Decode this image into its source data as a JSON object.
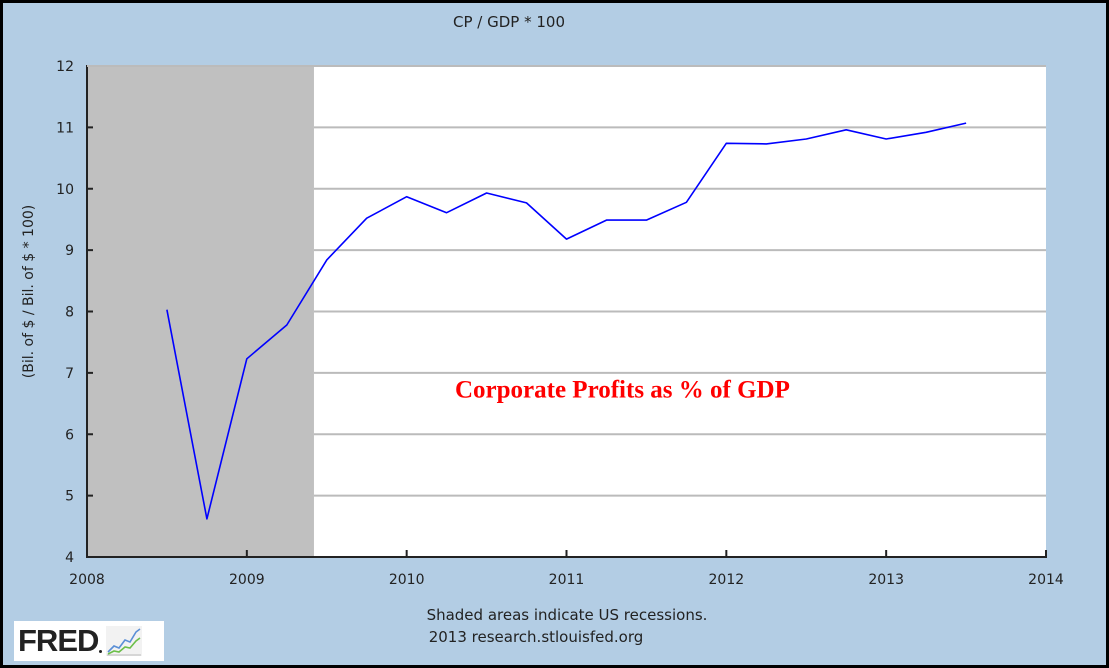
{
  "chart_data": {
    "type": "line",
    "title": "CP / GDP * 100",
    "xlabel": "",
    "ylabel": "(Bil. of $ / Bil. of $ * 100)",
    "xlim": [
      2008,
      2014
    ],
    "ylim": [
      4,
      12
    ],
    "x_ticks": [
      2008,
      2009,
      2010,
      2011,
      2012,
      2013,
      2014
    ],
    "x_tick_labels": [
      "2008",
      "2009",
      "2010",
      "2011",
      "2012",
      "2013",
      "2014"
    ],
    "y_ticks": [
      4,
      5,
      6,
      7,
      8,
      9,
      10,
      11,
      12
    ],
    "y_tick_labels": [
      "4",
      "5",
      "6",
      "7",
      "8",
      "9",
      "10",
      "11",
      "12"
    ],
    "grid": "horizontal",
    "series": [
      {
        "name": "CP / GDP * 100",
        "color": "#0000ff",
        "x": [
          2008.5,
          2008.75,
          2009.0,
          2009.25,
          2009.5,
          2009.75,
          2010.0,
          2010.25,
          2010.5,
          2010.75,
          2011.0,
          2011.25,
          2011.5,
          2011.75,
          2012.0,
          2012.25,
          2012.5,
          2012.75,
          2013.0,
          2013.25,
          2013.5
        ],
        "values": [
          8.03,
          4.62,
          7.23,
          7.78,
          8.84,
          9.52,
          9.87,
          9.61,
          9.93,
          9.77,
          9.18,
          9.49,
          9.49,
          9.78,
          10.74,
          10.73,
          10.81,
          10.96,
          10.81,
          10.92,
          11.07
        ]
      }
    ],
    "recessions": [
      {
        "start": 2008.0,
        "end": 2009.42,
        "color": "#c0c0c0"
      }
    ],
    "annotations": [
      {
        "text": "Corporate Profits as % of GDP",
        "color": "#ff0000",
        "x": 2011.35,
        "y": 6.6
      }
    ],
    "notes": [
      "Shaded areas indicate US recessions.",
      "2013 research.stlouisfed.org"
    ]
  },
  "branding": {
    "logo_text": "FRED",
    "logo_icon": "chart-trend-icon"
  },
  "colors": {
    "background": "#b3cde4",
    "plot_background": "#ffffff",
    "recession_shade": "#c0c0c0",
    "gridline": "#bbbbbb",
    "series_line": "#0000ff",
    "annotation": "#ff0000"
  }
}
